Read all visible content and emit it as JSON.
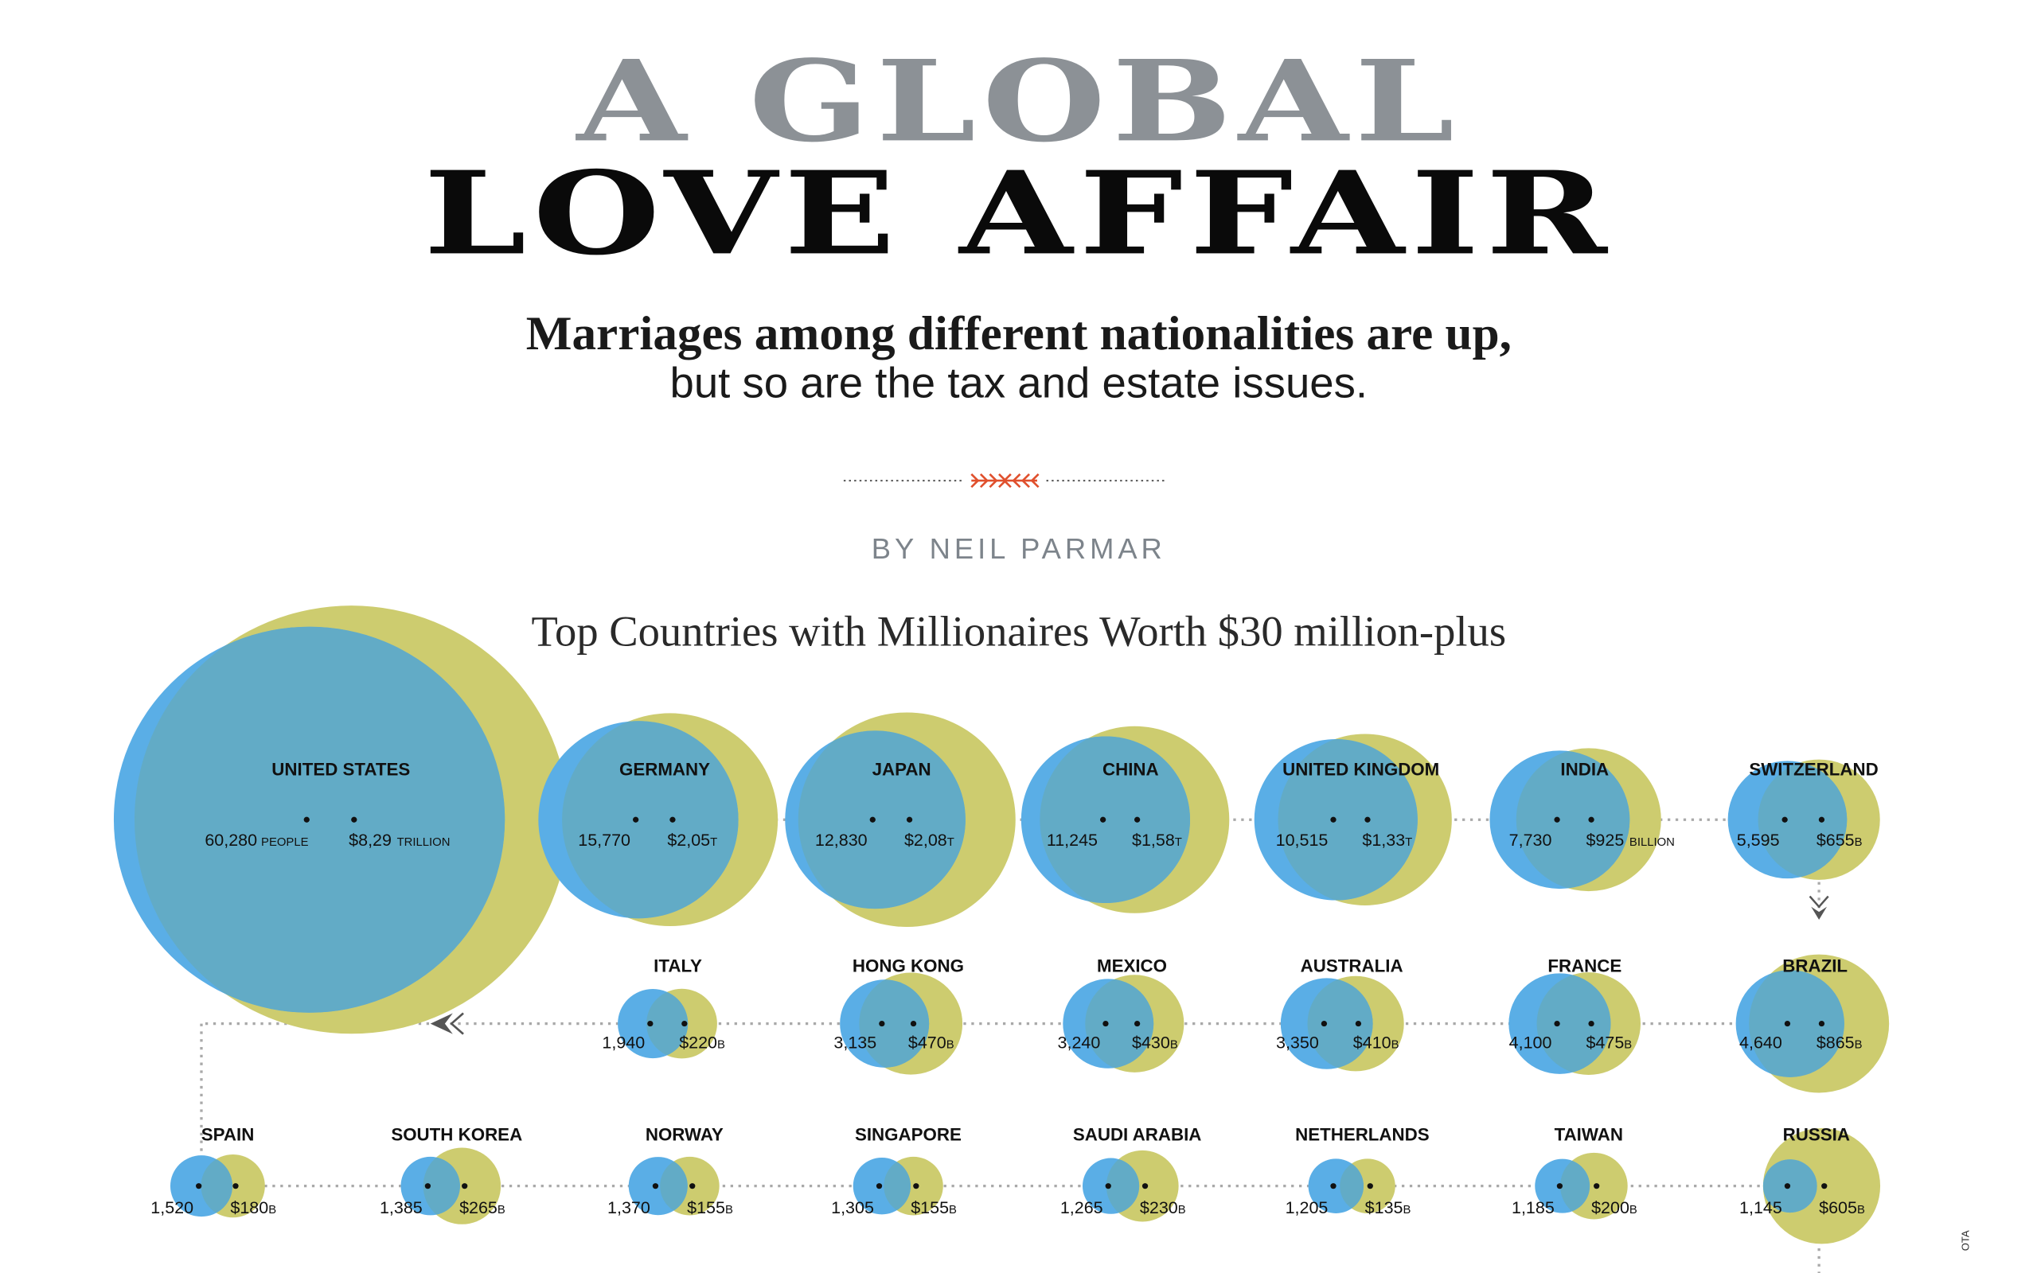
{
  "header": {
    "title_line1": "A GLOBAL",
    "title_line2": "LOVE AFFAIR",
    "subtitle_line1": "Marriages among different nationalities are up,",
    "subtitle_line2": "but so are the tax and estate issues.",
    "byline": "BY NEIL PARMAR"
  },
  "colors": {
    "people": "#5aaee6",
    "wealth": "#cdcc6f",
    "overlap": "#62abc6",
    "divider_accent": "#e0502d",
    "connector": "#a9a9a9"
  },
  "chart_data": {
    "type": "bubble",
    "title": "Top Countries with Millionaires Worth $30 million-plus",
    "series": [
      {
        "name": "people",
        "color": "#5aaee6"
      },
      {
        "name": "wealth",
        "color": "#cdcc6f"
      }
    ],
    "countries": [
      {
        "name": "UNITED STATES",
        "people": 60280,
        "people_label": "60,280",
        "people_unit": "PEOPLE",
        "wealth_billions": 8290,
        "wealth_label": "$8,29",
        "wealth_unit": "TRILLION"
      },
      {
        "name": "GERMANY",
        "people": 15770,
        "people_label": "15,770",
        "wealth_billions": 2050,
        "wealth_label": "$2,05",
        "wealth_unit": "T"
      },
      {
        "name": "JAPAN",
        "people": 12830,
        "people_label": "12,830",
        "wealth_billions": 2080,
        "wealth_label": "$2,08",
        "wealth_unit": "T"
      },
      {
        "name": "CHINA",
        "people": 11245,
        "people_label": "11,245",
        "wealth_billions": 1580,
        "wealth_label": "$1,58",
        "wealth_unit": "T"
      },
      {
        "name": "UNITED KINGDOM",
        "people": 10515,
        "people_label": "10,515",
        "wealth_billions": 1330,
        "wealth_label": "$1,33",
        "wealth_unit": "T"
      },
      {
        "name": "INDIA",
        "people": 7730,
        "people_label": "7,730",
        "wealth_billions": 925,
        "wealth_label": "$925",
        "wealth_unit": "BILLION"
      },
      {
        "name": "SWITZERLAND",
        "people": 5595,
        "people_label": "5,595",
        "wealth_billions": 655,
        "wealth_label": "$655",
        "wealth_unit": "B"
      },
      {
        "name": "BRAZIL",
        "people": 4640,
        "people_label": "4,640",
        "wealth_billions": 865,
        "wealth_label": "$865",
        "wealth_unit": "B"
      },
      {
        "name": "FRANCE",
        "people": 4100,
        "people_label": "4,100",
        "wealth_billions": 475,
        "wealth_label": "$475",
        "wealth_unit": "B"
      },
      {
        "name": "AUSTRALIA",
        "people": 3350,
        "people_label": "3,350",
        "wealth_billions": 410,
        "wealth_label": "$410",
        "wealth_unit": "B"
      },
      {
        "name": "MEXICO",
        "people": 3240,
        "people_label": "3,240",
        "wealth_billions": 430,
        "wealth_label": "$430",
        "wealth_unit": "B"
      },
      {
        "name": "HONG KONG",
        "people": 3135,
        "people_label": "3,135",
        "wealth_billions": 470,
        "wealth_label": "$470",
        "wealth_unit": "B"
      },
      {
        "name": "ITALY",
        "people": 1940,
        "people_label": "1,940",
        "wealth_billions": 220,
        "wealth_label": "$220",
        "wealth_unit": "B"
      },
      {
        "name": "SPAIN",
        "people": 1520,
        "people_label": "1,520",
        "wealth_billions": 180,
        "wealth_label": "$180",
        "wealth_unit": "B"
      },
      {
        "name": "SOUTH KOREA",
        "people": 1385,
        "people_label": "1,385",
        "wealth_billions": 265,
        "wealth_label": "$265",
        "wealth_unit": "B"
      },
      {
        "name": "NORWAY",
        "people": 1370,
        "people_label": "1,370",
        "wealth_billions": 155,
        "wealth_label": "$155",
        "wealth_unit": "B"
      },
      {
        "name": "SINGAPORE",
        "people": 1305,
        "people_label": "1,305",
        "wealth_billions": 155,
        "wealth_label": "$155",
        "wealth_unit": "B"
      },
      {
        "name": "SAUDI ARABIA",
        "people": 1265,
        "people_label": "1,265",
        "wealth_billions": 230,
        "wealth_label": "$230",
        "wealth_unit": "B"
      },
      {
        "name": "NETHERLANDS",
        "people": 1205,
        "people_label": "1,205",
        "wealth_billions": 135,
        "wealth_label": "$135",
        "wealth_unit": "B"
      },
      {
        "name": "TAIWAN",
        "people": 1185,
        "people_label": "1,185",
        "wealth_billions": 200,
        "wealth_label": "$200",
        "wealth_unit": "B"
      },
      {
        "name": "RUSSIA",
        "people": 1145,
        "people_label": "1,145",
        "wealth_billions": 605,
        "wealth_label": "$605",
        "wealth_unit": "B"
      }
    ]
  },
  "credit": "OTA"
}
